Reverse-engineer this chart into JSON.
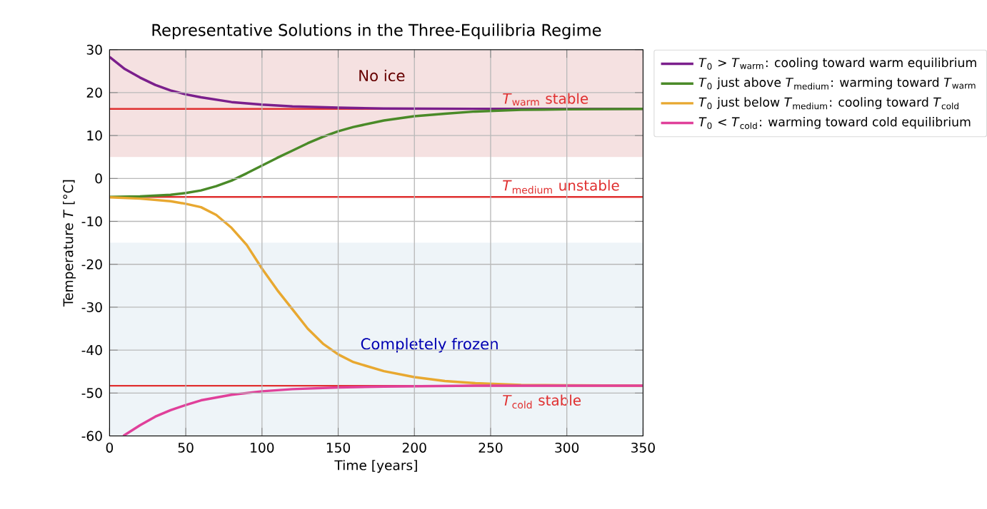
{
  "chart_data": {
    "type": "line",
    "title": "Representative Solutions in the Three-Equilibria Regime",
    "xlabel": "Time [years]",
    "ylabel": "Temperature *T* [°C]",
    "xlim": [
      0,
      350
    ],
    "ylim": [
      -60,
      30
    ],
    "xticks": [
      0,
      50,
      100,
      150,
      200,
      250,
      300,
      350
    ],
    "yticks": [
      -60,
      -50,
      -40,
      -30,
      -20,
      -10,
      0,
      10,
      20,
      30
    ],
    "grid": true,
    "legend": "top right",
    "line_style": "solid",
    "marker": "none",
    "series": [
      {
        "name": "*T*$_{0}$ > *T*$_{warm}$: cooling toward warm equilibrium",
        "color": "#7b1f8c",
        "x": [
          0,
          10,
          20,
          30,
          40,
          50,
          60,
          80,
          100,
          120,
          150,
          180,
          240,
          350
        ],
        "values": [
          28.3,
          25.5,
          23.5,
          21.8,
          20.5,
          19.6,
          18.9,
          17.8,
          17.2,
          16.8,
          16.5,
          16.3,
          16.2,
          16.2
        ]
      },
      {
        "name": "*T*$_{0}$ just above *T*$_{medium}$: warming toward *T*$_{warm}$",
        "color": "#4a8a28",
        "x": [
          0,
          20,
          40,
          50,
          60,
          70,
          80,
          90,
          100,
          110,
          120,
          130,
          140,
          150,
          160,
          180,
          200,
          220,
          240,
          270,
          300,
          350
        ],
        "values": [
          -4.3,
          -4.2,
          -3.8,
          -3.4,
          -2.8,
          -1.8,
          -0.5,
          1.2,
          3.0,
          4.8,
          6.5,
          8.2,
          9.7,
          11.0,
          12.0,
          13.5,
          14.5,
          15.1,
          15.6,
          16.0,
          16.1,
          16.2
        ]
      },
      {
        "name": "*T*$_{0}$ just below *T*$_{medium}$: cooling toward *T*$_{cold}$",
        "color": "#e8a830",
        "x": [
          0,
          20,
          40,
          50,
          60,
          70,
          80,
          90,
          100,
          110,
          120,
          130,
          140,
          150,
          160,
          180,
          200,
          220,
          240,
          270,
          300,
          350
        ],
        "values": [
          -4.4,
          -4.7,
          -5.3,
          -5.9,
          -6.7,
          -8.5,
          -11.5,
          -15.5,
          -21,
          -26,
          -30.5,
          -35,
          -38.5,
          -41,
          -42.8,
          -44.9,
          -46.3,
          -47.2,
          -47.7,
          -48.1,
          -48.2,
          -48.3
        ]
      },
      {
        "name": "*T*$_{0}$ < *T*$_{cold}$: warming toward cold equilibrium",
        "color": "#e0409a",
        "x": [
          9,
          20,
          30,
          40,
          50,
          60,
          80,
          100,
          120,
          150,
          180,
          240,
          350
        ],
        "values": [
          -60,
          -57.5,
          -55.5,
          -54,
          -52.8,
          -51.7,
          -50.4,
          -49.6,
          -49.1,
          -48.7,
          -48.5,
          -48.3,
          -48.3
        ]
      }
    ],
    "ref_lines": [
      {
        "axis": "y",
        "value": 16.2,
        "label": "*T*$_{warm}$ stable",
        "color": "#e03030"
      },
      {
        "axis": "y",
        "value": -4.3,
        "label": "*T*$_{medium}$ unstable",
        "color": "#e03030"
      },
      {
        "axis": "y",
        "value": -48.3,
        "label": "*T*$_{cold}$ stable",
        "color": "#e03030"
      }
    ],
    "bands": [
      {
        "axis": "y",
        "from": 5,
        "to": 30,
        "color": "#f5e1e1"
      },
      {
        "axis": "y",
        "from": -60,
        "to": -15,
        "color": "#eef4f8"
      }
    ],
    "annotations": [
      "No ice",
      "Completely frozen"
    ]
  }
}
